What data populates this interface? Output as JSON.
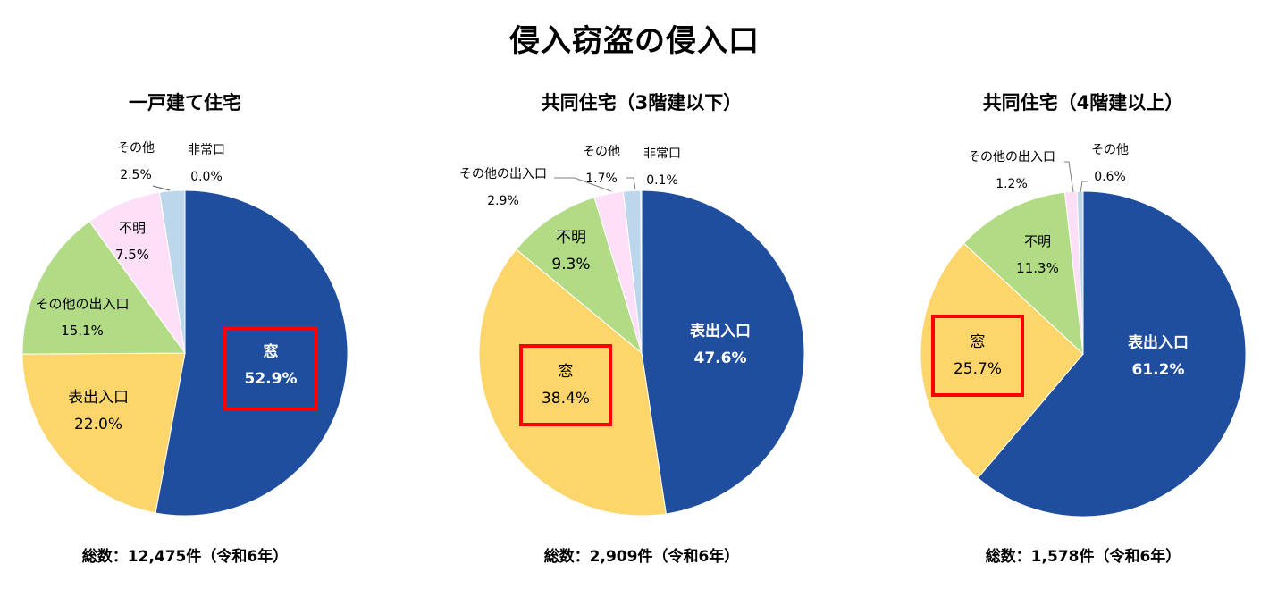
{
  "title": "侵入窃盗の侵入口",
  "colors": {
    "window_or_front": "#1f4e9e",
    "yellow": "#fdd66b",
    "green": "#b1db85",
    "pink": "#fde0f8",
    "light_blue": "#bcd6ec",
    "highlight": "#ff0000"
  },
  "charts": [
    {
      "title": "一戸建て住宅",
      "total": "総数：12,475件（令和6年）",
      "labels": {
        "s0": {
          "name": "窓",
          "value": "52.9%"
        },
        "s1": {
          "name": "表出入口",
          "value": "22.0%"
        },
        "s2": {
          "name": "その他の出入口",
          "value": "15.1%"
        },
        "s3": {
          "name": "不明",
          "value": "7.5%"
        },
        "s4": {
          "name": "その他",
          "value": "2.5%"
        },
        "s5": {
          "name": "非常口",
          "value": "0.0%"
        }
      }
    },
    {
      "title": "共同住宅（3階建以下）",
      "total": "総数：2,909件（令和6年）",
      "labels": {
        "s0": {
          "name": "表出入口",
          "value": "47.6%"
        },
        "s1": {
          "name": "窓",
          "value": "38.4%"
        },
        "s2": {
          "name": "不明",
          "value": "9.3%"
        },
        "s3": {
          "name": "その他の出入口",
          "value": "2.9%"
        },
        "s4": {
          "name": "その他",
          "value": "1.7%"
        },
        "s5": {
          "name": "非常口",
          "value": "0.1%"
        }
      }
    },
    {
      "title": "共同住宅（4階建以上）",
      "total": "総数：1,578件（令和6年）",
      "labels": {
        "s0": {
          "name": "表出入口",
          "value": "61.2%"
        },
        "s1": {
          "name": "窓",
          "value": "25.7%"
        },
        "s2": {
          "name": "不明",
          "value": "11.3%"
        },
        "s3": {
          "name": "その他の出入口",
          "value": "1.2%"
        },
        "s4": {
          "name": "その他",
          "value": "0.6%"
        }
      }
    }
  ],
  "chart_data": [
    {
      "type": "pie",
      "title": "一戸建て住宅",
      "subtitle": "総数：12,475件（令和6年）",
      "categories": [
        "窓",
        "表出入口",
        "その他の出入口",
        "不明",
        "その他",
        "非常口"
      ],
      "values": [
        52.9,
        22.0,
        15.1,
        7.5,
        2.5,
        0.0
      ],
      "colors": [
        "#1f4e9e",
        "#fdd66b",
        "#b1db85",
        "#fde0f8",
        "#bcd6ec",
        "#70ad47"
      ],
      "highlighted": "窓",
      "unit": "%"
    },
    {
      "type": "pie",
      "title": "共同住宅（3階建以下）",
      "subtitle": "総数：2,909件（令和6年）",
      "categories": [
        "表出入口",
        "窓",
        "不明",
        "その他の出入口",
        "その他",
        "非常口"
      ],
      "values": [
        47.6,
        38.4,
        9.3,
        2.9,
        1.7,
        0.1
      ],
      "colors": [
        "#1f4e9e",
        "#fdd66b",
        "#b1db85",
        "#fde0f8",
        "#bcd6ec",
        "#70ad47"
      ],
      "highlighted": "窓",
      "unit": "%"
    },
    {
      "type": "pie",
      "title": "共同住宅（4階建以上）",
      "subtitle": "総数：1,578件（令和6年）",
      "categories": [
        "表出入口",
        "窓",
        "不明",
        "その他の出入口",
        "その他"
      ],
      "values": [
        61.2,
        25.7,
        11.3,
        1.2,
        0.6
      ],
      "colors": [
        "#1f4e9e",
        "#fdd66b",
        "#b1db85",
        "#fde0f8",
        "#bcd6ec"
      ],
      "highlighted": "窓",
      "unit": "%"
    }
  ]
}
